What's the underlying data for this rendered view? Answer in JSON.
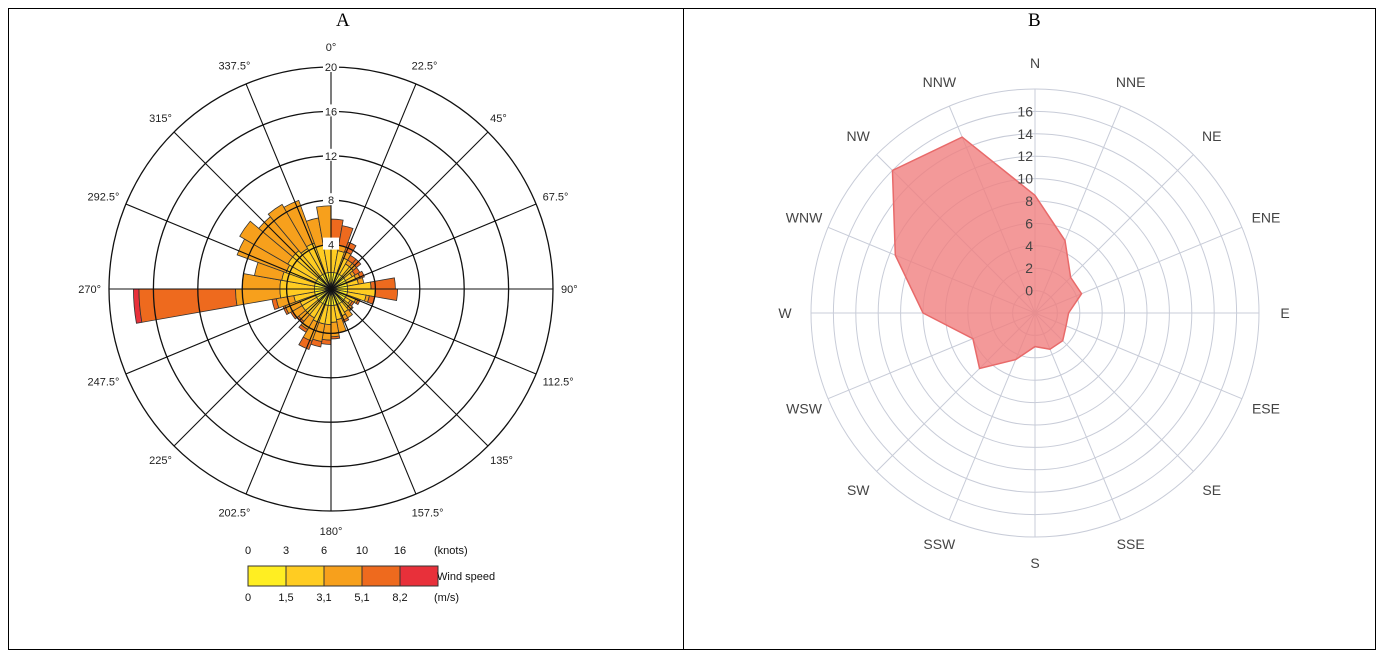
{
  "panels": {
    "a_label": "A",
    "b_label": "B"
  },
  "legend": {
    "knots_ticks": [
      "0",
      "3",
      "6",
      "10",
      "16"
    ],
    "knots_unit": "(knots)",
    "ms_ticks": [
      "0",
      "1,5",
      "3,1",
      "5,1",
      "8,2"
    ],
    "ms_unit": "(m/s)",
    "title": "Wind speed",
    "colors": [
      "#ffee22",
      "#ffcc22",
      "#f7a01c",
      "#ee6a1e",
      "#e8303a"
    ]
  },
  "chart_data": [
    {
      "type": "polar-bar",
      "subtype": "wind-rose",
      "panel": "A",
      "directions_deg": [
        "0°",
        "22.5°",
        "45°",
        "67.5°",
        "90°",
        "112.5°",
        "135°",
        "157.5°",
        "180°",
        "202.5°",
        "225°",
        "247.5°",
        "270°",
        "292.5°",
        "315°",
        "337.5°"
      ],
      "radial_ticks": [
        "4",
        "8",
        "12",
        "16",
        "20"
      ],
      "rlim": [
        0,
        20
      ],
      "sector_count": 36,
      "speed_bins": [
        "0-3",
        "3-6",
        "6-10",
        "10-16",
        ">16"
      ],
      "sectors_cumulative": [
        [
          1.5,
          4.0,
          4.3,
          6.3,
          6.3
        ],
        [
          1.5,
          3.5,
          4.0,
          5.8,
          5.8
        ],
        [
          1.5,
          3.0,
          3.6,
          4.5,
          4.5
        ],
        [
          1.5,
          2.6,
          3.0,
          3.5,
          3.5
        ],
        [
          1.5,
          2.6,
          3.0,
          3.5,
          3.5
        ],
        [
          1.5,
          2.2,
          2.5,
          3.0,
          3.0
        ],
        [
          1.5,
          2.4,
          2.8,
          3.2,
          3.2
        ],
        [
          1.5,
          2.5,
          3.0,
          3.0,
          3.0
        ],
        [
          1.5,
          3.6,
          3.6,
          5.8,
          5.8
        ],
        [
          1.5,
          4.0,
          4.0,
          6.0,
          6.0
        ],
        [
          1.5,
          3.2,
          3.5,
          4.0,
          4.0
        ],
        [
          1.5,
          2.4,
          2.6,
          2.8,
          2.8
        ],
        [
          1.5,
          2.0,
          2.2,
          2.4,
          2.4
        ],
        [
          1.5,
          2.2,
          2.5,
          2.6,
          2.6
        ],
        [
          1.5,
          2.4,
          3.0,
          3.0,
          3.0
        ],
        [
          1.5,
          2.6,
          3.0,
          3.2,
          3.2
        ],
        [
          1.5,
          2.8,
          4.0,
          4.0,
          4.0
        ],
        [
          1.5,
          3.0,
          4.3,
          4.5,
          4.5
        ],
        [
          1.5,
          3.2,
          4.6,
          5.0,
          5.0
        ],
        [
          1.5,
          3.2,
          4.8,
          5.3,
          5.3
        ],
        [
          1.5,
          3.2,
          5.0,
          5.8,
          5.8
        ],
        [
          1.5,
          3.0,
          4.2,
          4.5,
          4.5
        ],
        [
          1.5,
          3.0,
          3.8,
          4.0,
          4.0
        ],
        [
          1.5,
          3.0,
          4.0,
          4.2,
          4.2
        ],
        [
          1.5,
          3.0,
          4.4,
          4.6,
          4.6
        ],
        [
          1.5,
          3.4,
          5.0,
          5.4,
          5.4
        ],
        [
          1.5,
          4.6,
          8.6,
          17.3,
          17.8
        ],
        [
          1.5,
          4.6,
          8.0,
          8.0,
          8.0
        ],
        [
          1.5,
          4.5,
          7.0,
          7.0,
          7.0
        ],
        [
          1.5,
          4.3,
          9.0,
          9.0,
          9.0
        ],
        [
          1.5,
          4.5,
          9.5,
          9.5,
          9.5
        ],
        [
          1.5,
          4.5,
          8.5,
          8.5,
          8.5
        ],
        [
          1.5,
          4.2,
          8.8,
          8.8,
          8.8
        ],
        [
          1.5,
          4.4,
          8.5,
          8.5,
          8.5
        ],
        [
          1.5,
          4.0,
          6.5,
          6.5,
          6.5
        ],
        [
          1.5,
          4.2,
          7.5,
          7.5,
          7.5
        ]
      ]
    },
    {
      "type": "radar",
      "panel": "B",
      "categories": [
        "N",
        "NNE",
        "NE",
        "ENE",
        "E",
        "ESE",
        "SE",
        "SSE",
        "S",
        "SSW",
        "SW",
        "WSW",
        "W",
        "WNW",
        "NW",
        "NNW"
      ],
      "values": [
        8.5,
        5.0,
        2.5,
        2.5,
        1.0,
        1.0,
        1.5,
        1.5,
        1.0,
        2.5,
        5.0,
        4.0,
        8.0,
        11.5,
        16.0,
        15.0
      ],
      "radial_ticks": [
        "0",
        "2",
        "4",
        "6",
        "8",
        "10",
        "12",
        "14",
        "16"
      ],
      "rlim": [
        -2,
        18
      ],
      "fill_color": "#f08080"
    }
  ]
}
